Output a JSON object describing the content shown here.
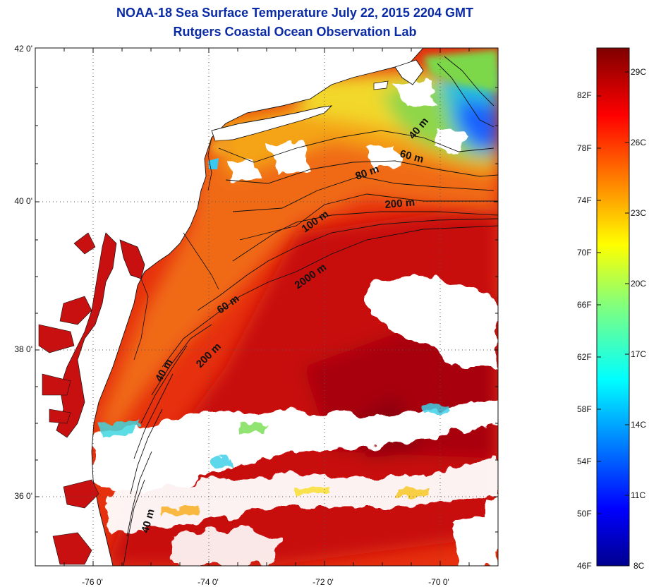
{
  "header": {
    "title": "NOAA-18 Sea Surface Temperature July 22, 2015 2204 GMT",
    "subtitle": "Rutgers Coastal Ocean Observation Lab"
  },
  "map": {
    "lat_ticks": [
      "42 0'",
      "40 0'",
      "38 0'",
      "36 0'"
    ],
    "lon_ticks": [
      "-76 0'",
      "-74 0'",
      "-72 0'",
      "-70 0'"
    ],
    "isobath_labels": [
      "40 m",
      "60 m",
      "80 m",
      "200 m",
      "100 m",
      "2000 m",
      "60 m",
      "200 m",
      "40 m",
      "40 m"
    ],
    "lon_range": [
      -77.0,
      -69.0
    ],
    "lat_range": [
      35.0,
      42.0
    ],
    "grid": "dotted"
  },
  "colorbar": {
    "fahrenheit": [
      "82F",
      "78F",
      "74F",
      "70F",
      "66F",
      "62F",
      "58F",
      "54F",
      "50F",
      "46F"
    ],
    "celsius": [
      "29C",
      "26C",
      "23C",
      "20C",
      "17C",
      "14C",
      "11C",
      "8C"
    ],
    "range_c": [
      8,
      31
    ],
    "colormap": "jet"
  },
  "colors": {
    "title": "#0a2aa6",
    "land": "#ffffff",
    "cloud": "#ffffff",
    "gulf_stream": "#c40a0a",
    "shelf": "#f77a10",
    "cold_water": "#1f7bff"
  }
}
